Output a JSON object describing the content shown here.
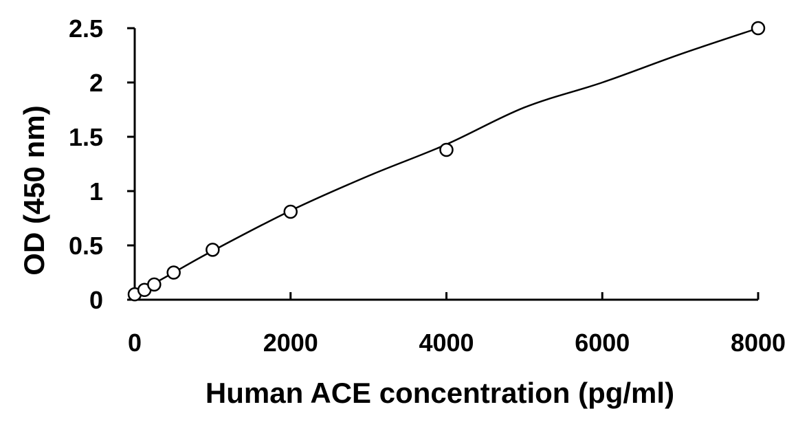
{
  "chart_data": {
    "type": "scatter",
    "title": "",
    "xlabel": "Human ACE concentration (pg/ml)",
    "ylabel": "OD (450 nm)",
    "xlim": [
      0,
      8000
    ],
    "ylim": [
      0,
      2.5
    ],
    "xticks": [
      0,
      2000,
      4000,
      6000,
      8000
    ],
    "xtick_labels": [
      "0",
      "2000",
      "4000",
      "6000",
      "8000"
    ],
    "yticks": [
      0,
      0.5,
      1,
      1.5,
      2,
      2.5
    ],
    "ytick_labels": [
      "0",
      "0.5",
      "1",
      "1.5",
      "2",
      "2.5"
    ],
    "grid": false,
    "legend": "none",
    "series": [
      {
        "marker": "open-circle",
        "x": [
          0,
          125,
          250,
          500,
          1000,
          2000,
          4000,
          8000
        ],
        "y": [
          0.05,
          0.09,
          0.14,
          0.25,
          0.46,
          0.81,
          1.38,
          2.5
        ]
      }
    ],
    "fit_curve": {
      "x": [
        0,
        125,
        250,
        500,
        1000,
        2000,
        3000,
        4000,
        5000,
        6000,
        7000,
        8000
      ],
      "y": [
        0.05,
        0.1,
        0.15,
        0.25,
        0.45,
        0.82,
        1.14,
        1.43,
        1.77,
        2.0,
        2.26,
        2.5
      ]
    },
    "colors": {
      "marker_fill": "#ffffff",
      "stroke": "#000000"
    }
  }
}
